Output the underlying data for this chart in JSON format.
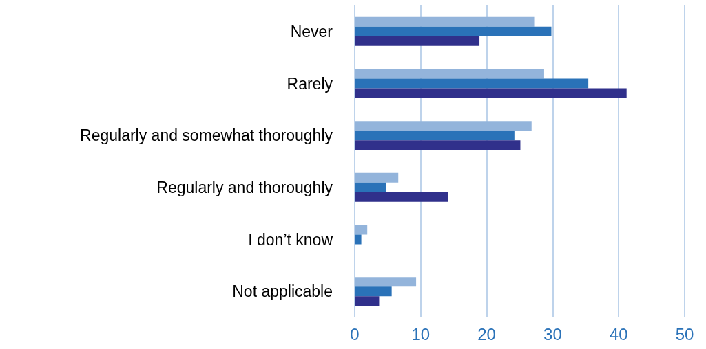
{
  "chart_data": {
    "type": "bar",
    "orientation": "horizontal",
    "categories": [
      "Never",
      "Rarely",
      "Regularly and somewhat thoroughly",
      "Regularly and thoroughly",
      "I don’t know",
      "Not applicable"
    ],
    "series": [
      {
        "color": "#93b4db",
        "values": [
          27.3,
          28.7,
          26.8,
          6.6,
          1.9,
          9.3
        ]
      },
      {
        "color": "#2a72b8",
        "values": [
          29.8,
          35.4,
          24.2,
          4.7,
          1.0,
          5.6
        ]
      },
      {
        "color": "#30308b",
        "values": [
          18.9,
          41.2,
          25.1,
          14.1,
          0,
          3.7
        ]
      }
    ],
    "xlim": [
      0,
      50
    ],
    "xticks": [
      0,
      10,
      20,
      30,
      40,
      50
    ],
    "grid": "x"
  }
}
